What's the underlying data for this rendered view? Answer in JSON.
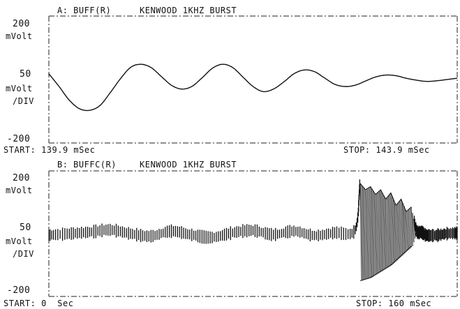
{
  "panel_a": {
    "title": "A: BUFF(R)",
    "subtitle": "KENWOOD 1KHZ BURST",
    "y_top": "200",
    "y_top_unit": "mVolt",
    "y_mid": "50",
    "y_mid_unit": "mVolt",
    "y_mid_div": "/DIV",
    "y_bot": "-200",
    "start": "START: 139.9 mSec",
    "stop": "STOP: 143.9 mSec"
  },
  "panel_b": {
    "title": "B: BUFFC(R)",
    "subtitle": "KENWOOD 1KHZ BURST",
    "y_top": "200",
    "y_top_unit": "mVolt",
    "y_mid": "50",
    "y_mid_unit": "mVolt",
    "y_mid_div": "/DIV",
    "y_bot": "-200",
    "start": "START: 0  Sec",
    "stop": "STOP: 160 mSec"
  },
  "chart_data": [
    {
      "type": "line",
      "title": "A: BUFF(R)  KENWOOD 1KHZ BURST",
      "xlabel": "",
      "ylabel": "mVolt",
      "xlim": [
        139.9,
        143.9
      ],
      "ylim": [
        -200,
        200
      ],
      "grid": false,
      "series": [
        {
          "x": [
            139.9,
            140.0,
            140.1,
            140.2,
            140.3,
            140.4,
            140.5,
            140.6,
            140.7,
            140.8,
            140.9,
            141.0,
            141.1,
            141.2,
            141.3,
            141.4,
            141.5,
            141.6,
            141.7,
            141.8,
            141.9,
            142.0,
            142.1,
            142.2,
            142.3,
            142.4,
            142.5,
            142.6,
            142.7,
            142.8,
            142.9,
            143.0,
            143.1,
            143.2,
            143.3,
            143.4,
            143.5,
            143.6,
            143.7,
            143.8,
            143.9
          ],
          "y": [
            18,
            -22,
            -65,
            -92,
            -97,
            -82,
            -42,
            2,
            38,
            48,
            38,
            10,
            -18,
            -30,
            -22,
            5,
            35,
            48,
            38,
            8,
            -22,
            -38,
            -30,
            -8,
            18,
            30,
            25,
            5,
            -15,
            -22,
            -18,
            -5,
            8,
            14,
            12,
            4,
            -2,
            -6,
            -4,
            0,
            4
          ]
        }
      ]
    },
    {
      "type": "line",
      "title": "B: BUFFC(R)  KENWOOD 1KHZ BURST",
      "xlabel": "",
      "ylabel": "mVolt",
      "xlim": [
        0,
        160
      ],
      "ylim": [
        -200,
        200
      ],
      "grid": false,
      "series": [
        {
          "x": [
            0,
            8,
            16,
            24,
            32,
            40,
            48,
            56,
            64,
            72,
            80,
            88,
            96,
            104,
            112,
            120,
            122,
            124,
            126,
            128,
            130,
            132,
            134,
            136,
            138,
            140,
            142,
            144,
            146,
            148,
            152,
            156,
            160
          ],
          "y": [
            -5,
            0,
            5,
            12,
            0,
            -8,
            8,
            -4,
            -12,
            3,
            10,
            -3,
            8,
            -6,
            3,
            12,
            160,
            140,
            150,
            125,
            140,
            110,
            130,
            90,
            110,
            70,
            85,
            10,
            5,
            -5,
            -5,
            0,
            2
          ],
          "envelope_min": [
            -5,
            0,
            5,
            12,
            0,
            -8,
            8,
            -4,
            -12,
            3,
            10,
            -3,
            8,
            -6,
            3,
            12,
            -150,
            -145,
            -140,
            -130,
            -120,
            -110,
            -100,
            -85,
            -70,
            -55,
            -40,
            10,
            5,
            -5,
            -5,
            0,
            2
          ]
        }
      ]
    }
  ]
}
